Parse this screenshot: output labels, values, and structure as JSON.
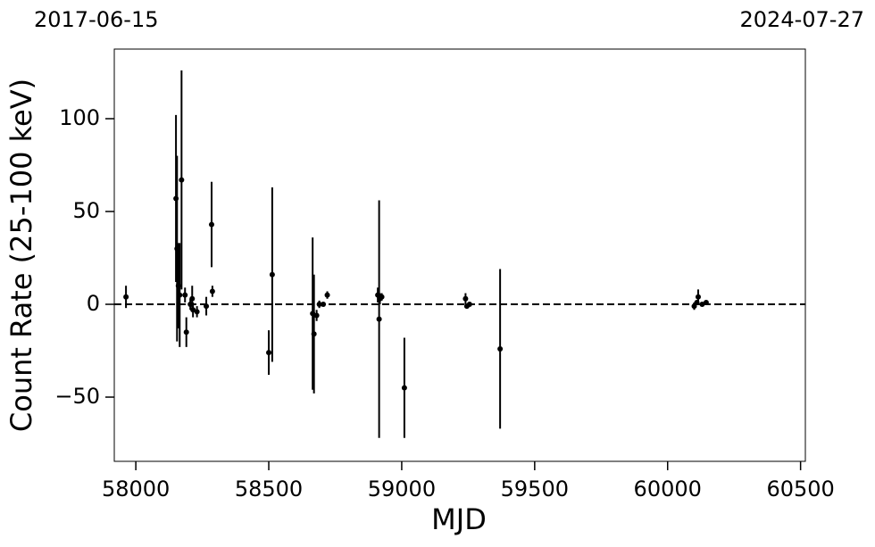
{
  "chart_data": {
    "type": "scatter",
    "top_left_label": "2017-06-15",
    "top_right_label": "2024-07-27",
    "xlabel": "MJD",
    "ylabel": "Count Rate (25-100 keV)",
    "xlim": [
      57919,
      60518
    ],
    "ylim": [
      -84.6,
      137.5
    ],
    "xticks": [
      58000,
      58500,
      59000,
      59500,
      60000,
      60500
    ],
    "yticks": [
      {
        "value": -50,
        "label": "−50"
      },
      0,
      50,
      100
    ],
    "hline": 0,
    "series": [
      {
        "color": "#000000",
        "x": [
          57963,
          58151,
          58155,
          58160,
          58165,
          58172,
          58185,
          58190,
          58205,
          58212,
          58215,
          58230,
          58265,
          58285,
          58288,
          58500,
          58513,
          58665,
          58670,
          58680,
          58690,
          58705,
          58720,
          58910,
          58915,
          58918,
          58925,
          59010,
          59240,
          59245,
          59255,
          59370,
          60100,
          60110,
          60115,
          60130,
          60145
        ],
        "values": [
          4,
          57,
          30,
          10,
          5,
          67,
          5,
          -15,
          0,
          3,
          -3,
          -4,
          -1,
          43,
          7,
          -26,
          16,
          -5,
          -16,
          -6,
          0,
          0,
          5,
          5,
          -8,
          3,
          4,
          -45,
          3,
          -1,
          0,
          -24,
          -1,
          1,
          4,
          0,
          1
        ],
        "errors": [
          6,
          45,
          50,
          23,
          28,
          59,
          4,
          8,
          3,
          7,
          4,
          3,
          5,
          23,
          3,
          12,
          47,
          41,
          32,
          3,
          2,
          1,
          2,
          4,
          64,
          3,
          2,
          27,
          3,
          1,
          1,
          43,
          2,
          1,
          4,
          1,
          1
        ]
      }
    ]
  }
}
